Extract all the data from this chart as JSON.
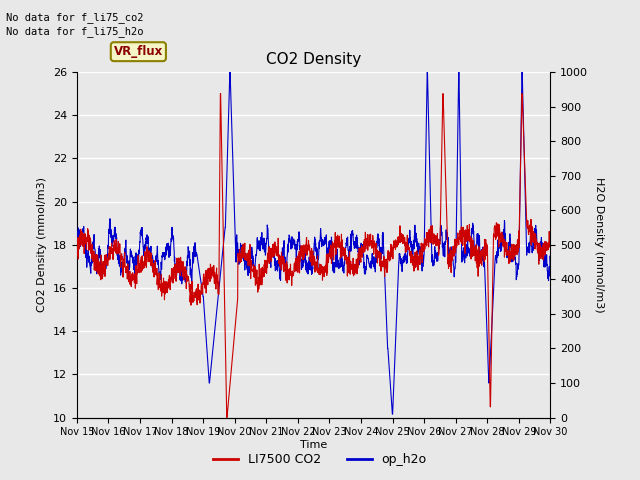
{
  "title": "CO2 Density",
  "xlabel": "Time",
  "ylabel_left": "CO2 Density (mmol/m3)",
  "ylabel_right": "H2O Density (mmol/m3)",
  "ylim_left": [
    10,
    26
  ],
  "ylim_right": [
    0,
    1000
  ],
  "yticks_left": [
    10,
    12,
    14,
    16,
    18,
    20,
    22,
    24,
    26
  ],
  "yticks_right": [
    0,
    100,
    200,
    300,
    400,
    500,
    600,
    700,
    800,
    900,
    1000
  ],
  "xtick_labels": [
    "Nov 15",
    "Nov 16",
    "Nov 17",
    "Nov 18",
    "Nov 19",
    "Nov 20",
    "Nov 21",
    "Nov 22",
    "Nov 23",
    "Nov 24",
    "Nov 25",
    "Nov 26",
    "Nov 27",
    "Nov 28",
    "Nov 29",
    "Nov 30"
  ],
  "no_data_text1": "No data for f_li75_co2",
  "no_data_text2": "No data for f_li75_h2o",
  "vr_flux_label": "VR_flux",
  "legend_entries": [
    "LI7500 CO2",
    "op_h2o"
  ],
  "co2_color": "#cc0000",
  "h2o_color": "#0000cc",
  "bg_color": "#e8e8e8",
  "plot_bg_color": "#e8e8e8",
  "grid_color": "#ffffff",
  "linewidth": 0.8,
  "figsize": [
    6.4,
    4.8
  ],
  "dpi": 100
}
